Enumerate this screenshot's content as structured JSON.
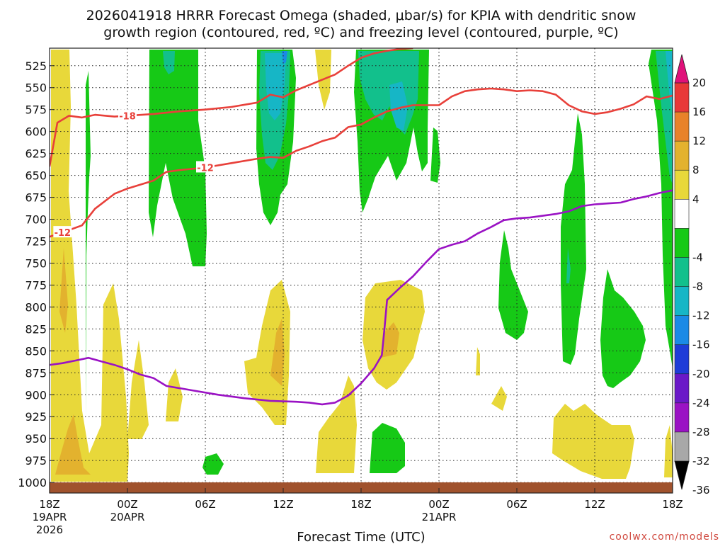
{
  "chart_data": {
    "type": "heatmap",
    "title_line1": "2026041918 HRRR Forecast Omega (shaded, μbar/s) for KPIA with dendritic snow",
    "title_line2": "growth region (contoured, red, ºC) and freezing level (contoured, purple, ºC)",
    "xlabel": "Forecast Time (UTC)",
    "credit": "coolwx.com/models",
    "x_range_hours": [
      0,
      48
    ],
    "y_range_hpa": [
      1012,
      505
    ],
    "y_ticks": [
      525,
      550,
      575,
      600,
      625,
      650,
      675,
      700,
      725,
      750,
      775,
      800,
      825,
      850,
      875,
      900,
      925,
      950,
      975,
      1000
    ],
    "x_ticks": [
      {
        "hour": 0,
        "label": "18Z",
        "sub1": "19APR",
        "sub2": "2026"
      },
      {
        "hour": 6,
        "label": "00Z",
        "sub1": "20APR",
        "sub2": ""
      },
      {
        "hour": 12,
        "label": "06Z",
        "sub1": "",
        "sub2": ""
      },
      {
        "hour": 18,
        "label": "12Z",
        "sub1": "",
        "sub2": ""
      },
      {
        "hour": 24,
        "label": "18Z",
        "sub1": "",
        "sub2": ""
      },
      {
        "hour": 30,
        "label": "00Z",
        "sub1": "21APR",
        "sub2": ""
      },
      {
        "hour": 36,
        "label": "06Z",
        "sub1": "",
        "sub2": ""
      },
      {
        "hour": 42,
        "label": "12Z",
        "sub1": "",
        "sub2": ""
      },
      {
        "hour": 48,
        "label": "18Z",
        "sub1": "",
        "sub2": ""
      }
    ],
    "colorbar": {
      "labels": [
        "20",
        "16",
        "12",
        "8",
        "4",
        "-4",
        "-8",
        "-12",
        "-16",
        "-20",
        "-24",
        "-28",
        "-32",
        "-36"
      ],
      "bins": [
        {
          "range": "16 to 20",
          "color": "#e83838"
        },
        {
          "range": "12 to 16",
          "color": "#e8822a"
        },
        {
          "range": "8 to 12",
          "color": "#e3b22e"
        },
        {
          "range": "4 to 8",
          "color": "#e8d83a"
        },
        {
          "range": "-4 to 4",
          "color": "#ffffff"
        },
        {
          "range": "-8 to -4",
          "color": "#16c916"
        },
        {
          "range": "-12 to -8",
          "color": "#12c08c"
        },
        {
          "range": "-16 to -12",
          "color": "#16b6c6"
        },
        {
          "range": "-20 to -16",
          "color": "#1a8ae6"
        },
        {
          "range": "-24 to -20",
          "color": "#1e3cd8"
        },
        {
          "range": "-28 to -24",
          "color": "#6a18c8"
        },
        {
          "range": "-32 to -28",
          "color": "#9a12c4"
        },
        {
          "range": "-36 to -32",
          "color": "#a8a8a8"
        }
      ],
      "top_arrow_color": "#e0117a",
      "bottom_arrow_color": "#000000"
    },
    "contours": [
      {
        "name": "minus18-isotherm",
        "label": "-18",
        "color": "#e8403a",
        "points": [
          [
            0,
            640
          ],
          [
            0.6,
            590
          ],
          [
            1.5,
            582
          ],
          [
            2.5,
            584
          ],
          [
            3.5,
            581
          ],
          [
            5,
            583
          ],
          [
            6,
            582
          ],
          [
            8,
            580
          ],
          [
            10,
            577
          ],
          [
            12,
            575
          ],
          [
            14,
            572
          ],
          [
            16,
            567
          ],
          [
            17,
            558
          ],
          [
            18,
            561
          ],
          [
            19,
            553
          ],
          [
            21,
            541
          ],
          [
            22,
            535
          ],
          [
            23,
            525
          ],
          [
            24,
            516
          ],
          [
            25,
            511
          ],
          [
            26,
            508
          ],
          [
            27,
            506
          ],
          [
            28,
            505
          ]
        ]
      },
      {
        "name": "minus12-isotherm",
        "label": "-12",
        "color": "#e8403a",
        "points": [
          [
            0,
            720
          ],
          [
            1,
            715
          ],
          [
            2.5,
            707
          ],
          [
            3.5,
            688
          ],
          [
            5,
            671
          ],
          [
            6,
            665
          ],
          [
            8,
            656
          ],
          [
            9,
            646
          ],
          [
            10,
            644
          ],
          [
            12,
            641
          ],
          [
            14,
            636
          ],
          [
            16,
            631
          ],
          [
            17,
            629
          ],
          [
            18,
            630
          ],
          [
            19,
            622
          ],
          [
            20,
            617
          ],
          [
            21,
            611
          ],
          [
            22,
            607
          ],
          [
            23,
            595
          ],
          [
            24,
            592
          ],
          [
            25,
            584
          ],
          [
            26,
            577
          ],
          [
            27,
            573
          ],
          [
            28,
            570
          ],
          [
            29,
            570
          ],
          [
            30,
            570
          ],
          [
            31,
            560
          ],
          [
            32,
            554
          ],
          [
            33,
            552
          ],
          [
            34,
            551
          ],
          [
            35,
            552
          ],
          [
            36,
            554
          ],
          [
            37,
            553
          ],
          [
            38,
            554
          ],
          [
            39,
            558
          ],
          [
            40,
            570
          ],
          [
            41,
            577
          ],
          [
            42,
            580
          ],
          [
            43,
            578
          ],
          [
            44,
            574
          ],
          [
            45,
            569
          ],
          [
            46,
            560
          ],
          [
            47,
            563
          ],
          [
            48,
            559
          ]
        ]
      },
      {
        "name": "freezing-level",
        "label": "",
        "color": "#9a12c4",
        "points": [
          [
            0,
            866
          ],
          [
            1,
            864
          ],
          [
            2,
            861
          ],
          [
            3,
            858
          ],
          [
            4,
            862
          ],
          [
            5,
            866
          ],
          [
            6,
            871
          ],
          [
            7,
            877
          ],
          [
            8,
            881
          ],
          [
            9,
            890
          ],
          [
            11,
            895
          ],
          [
            13,
            900
          ],
          [
            15,
            904
          ],
          [
            17,
            907
          ],
          [
            19,
            908
          ],
          [
            20,
            909
          ],
          [
            21,
            911
          ],
          [
            22,
            909
          ],
          [
            23,
            901
          ],
          [
            24,
            887
          ],
          [
            25,
            870
          ],
          [
            25.6,
            855
          ],
          [
            25.8,
            825
          ],
          [
            26,
            792
          ],
          [
            27,
            778
          ],
          [
            28,
            765
          ],
          [
            29,
            749
          ],
          [
            30,
            734
          ],
          [
            31,
            729
          ],
          [
            32,
            725
          ],
          [
            33,
            716
          ],
          [
            34,
            709
          ],
          [
            35,
            701
          ],
          [
            36,
            699
          ],
          [
            37,
            698
          ],
          [
            38,
            696
          ],
          [
            39,
            694
          ],
          [
            40,
            691
          ],
          [
            41,
            685
          ],
          [
            42,
            683
          ],
          [
            43,
            682
          ],
          [
            44,
            681
          ],
          [
            45,
            677
          ],
          [
            46,
            674
          ],
          [
            47,
            670
          ],
          [
            48,
            667
          ]
        ]
      }
    ]
  }
}
